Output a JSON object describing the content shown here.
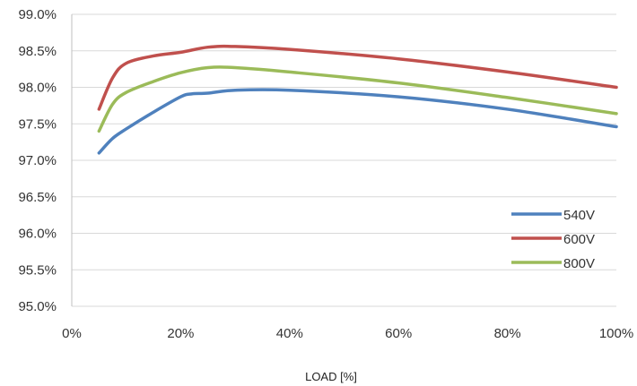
{
  "chart_data": {
    "type": "line",
    "title": "",
    "xlabel": "LOAD [%]",
    "ylabel": "",
    "xlim": [
      0,
      100
    ],
    "ylim": [
      95.0,
      99.0
    ],
    "x_ticks": [
      0,
      20,
      40,
      60,
      80,
      100
    ],
    "x_tick_labels": [
      "0%",
      "20%",
      "40%",
      "60%",
      "80%",
      "100%"
    ],
    "y_ticks": [
      95.0,
      95.5,
      96.0,
      96.5,
      97.0,
      97.5,
      98.0,
      98.5,
      99.0
    ],
    "y_tick_labels": [
      "95.0%",
      "95.5%",
      "96.0%",
      "96.5%",
      "97.0%",
      "97.5%",
      "98.0%",
      "98.5%",
      "99.0%"
    ],
    "grid": "horizontal",
    "legend_position": "bottom-right",
    "series": [
      {
        "name": "540V",
        "color": "#4f81bd",
        "x": [
          5,
          7.5,
          10,
          15,
          20,
          22,
          25,
          30,
          40,
          60,
          80,
          100
        ],
        "y": [
          97.1,
          97.3,
          97.43,
          97.66,
          97.87,
          97.91,
          97.92,
          97.96,
          97.96,
          97.87,
          97.7,
          97.46
        ]
      },
      {
        "name": "600V",
        "color": "#c0504d",
        "x": [
          5,
          7.5,
          10,
          15,
          20,
          25,
          30,
          40,
          60,
          80,
          100
        ],
        "y": [
          97.7,
          98.13,
          98.33,
          98.43,
          98.48,
          98.55,
          98.56,
          98.52,
          98.39,
          98.21,
          98.0
        ]
      },
      {
        "name": "800V",
        "color": "#9bbb59",
        "x": [
          5,
          7.5,
          10,
          15,
          20,
          25,
          30,
          40,
          60,
          80,
          100
        ],
        "y": [
          97.4,
          97.77,
          97.93,
          98.08,
          98.2,
          98.27,
          98.27,
          98.21,
          98.06,
          97.86,
          97.64
        ]
      }
    ]
  }
}
